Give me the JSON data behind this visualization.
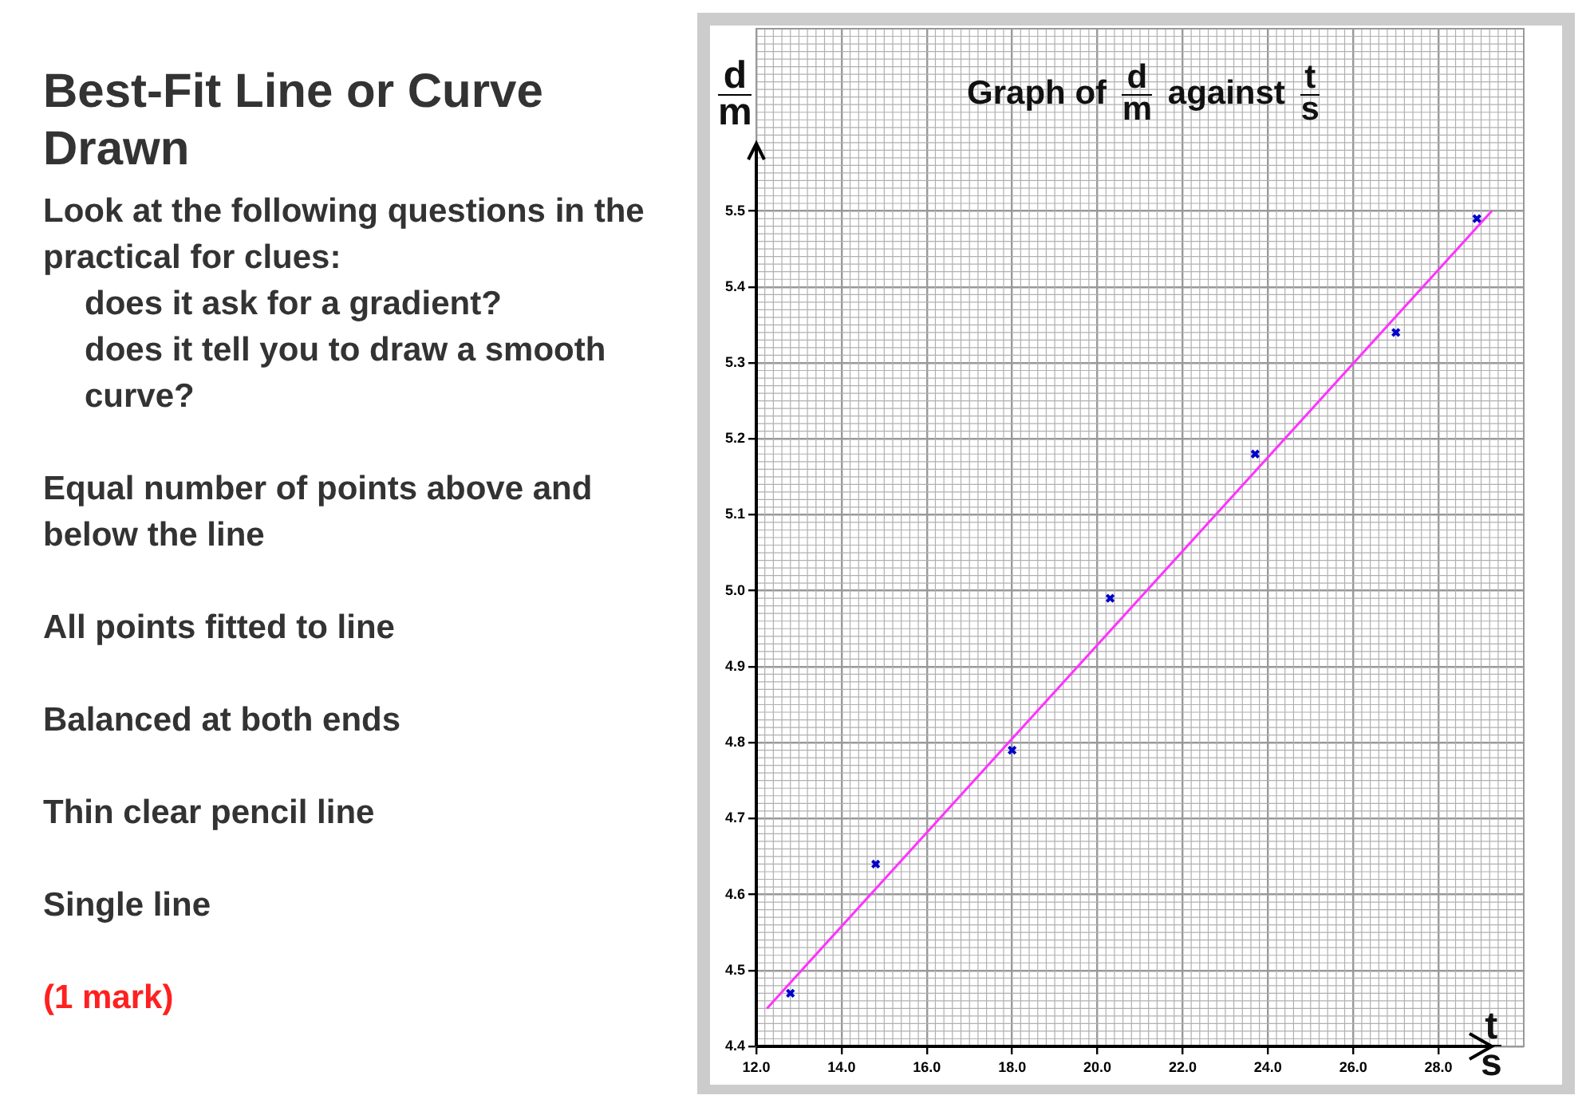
{
  "chart_data": {
    "type": "scatter",
    "title": "Graph of d/m against t/s",
    "xlabel": "t/s",
    "ylabel": "d/m",
    "xlim": [
      12,
      30
    ],
    "ylim": [
      4.4,
      5.74
    ],
    "xticks": [
      {
        "value": 12,
        "label": "12.0"
      },
      {
        "value": 14,
        "label": "14.0"
      },
      {
        "value": 16,
        "label": "16.0"
      },
      {
        "value": 18,
        "label": "18.0"
      },
      {
        "value": 20,
        "label": "20.0"
      },
      {
        "value": 22,
        "label": "22.0"
      },
      {
        "value": 24,
        "label": "24.0"
      },
      {
        "value": 26,
        "label": "26.0"
      },
      {
        "value": 28,
        "label": "28.0"
      }
    ],
    "yticks": [
      4.4,
      4.5,
      4.6,
      4.7,
      4.8,
      4.9,
      {
        "value": 5,
        "label": "5.0"
      },
      5.1,
      5.2,
      5.3,
      5.4,
      5.5
    ],
    "grid": true,
    "legend": false,
    "series": [
      {
        "type": "scatter",
        "marker": "cross",
        "color": "#0000cc",
        "x": [
          12.8,
          14.8,
          18.0,
          20.3,
          23.7,
          27.0,
          28.9
        ],
        "values": [
          4.47,
          4.64,
          4.79,
          4.99,
          5.18,
          5.34,
          5.49
        ]
      },
      {
        "type": "line",
        "marker": "none",
        "color": "#ff33ff",
        "x": [
          12.25,
          29.25
        ],
        "values": [
          4.45,
          5.5
        ]
      }
    ],
    "annotations": [
      "Best-Fit Line or Curve Drawn",
      "Look at the following questions in the practical for clues:",
      "does it ask for a gradient?",
      "does it tell you to draw a smooth curve?",
      "Equal number of points above and below the line",
      "All points fitted to line",
      "Balanced at both ends",
      "Thin clear pencil line",
      "Single line",
      "(1 mark)"
    ]
  }
}
